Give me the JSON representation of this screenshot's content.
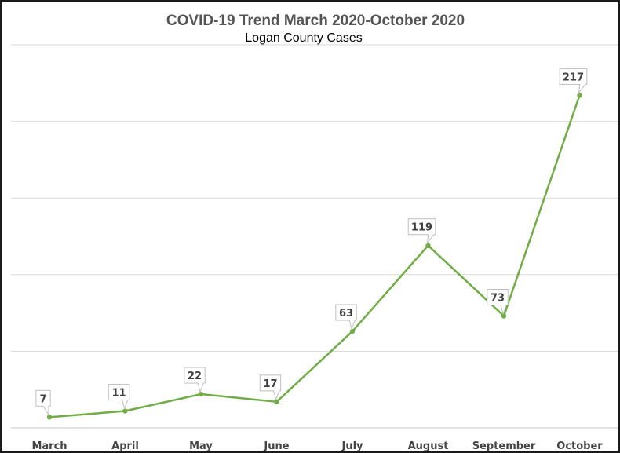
{
  "chart_data": {
    "type": "line",
    "title": "COVID-19 Trend March 2020-October 2020",
    "subtitle": "Logan County Cases",
    "categories": [
      "March",
      "April",
      "May",
      "June",
      "July",
      "August",
      "September",
      "October"
    ],
    "series": [
      {
        "values": [
          7,
          11,
          22,
          17,
          63,
          119,
          73,
          217
        ]
      }
    ],
    "ylim": [
      0,
      250
    ],
    "grid": true,
    "data_labels": true,
    "colors": {
      "line": "#70ad47",
      "grid": "#d9d9d9",
      "label_box": "#bfbfbf"
    }
  }
}
